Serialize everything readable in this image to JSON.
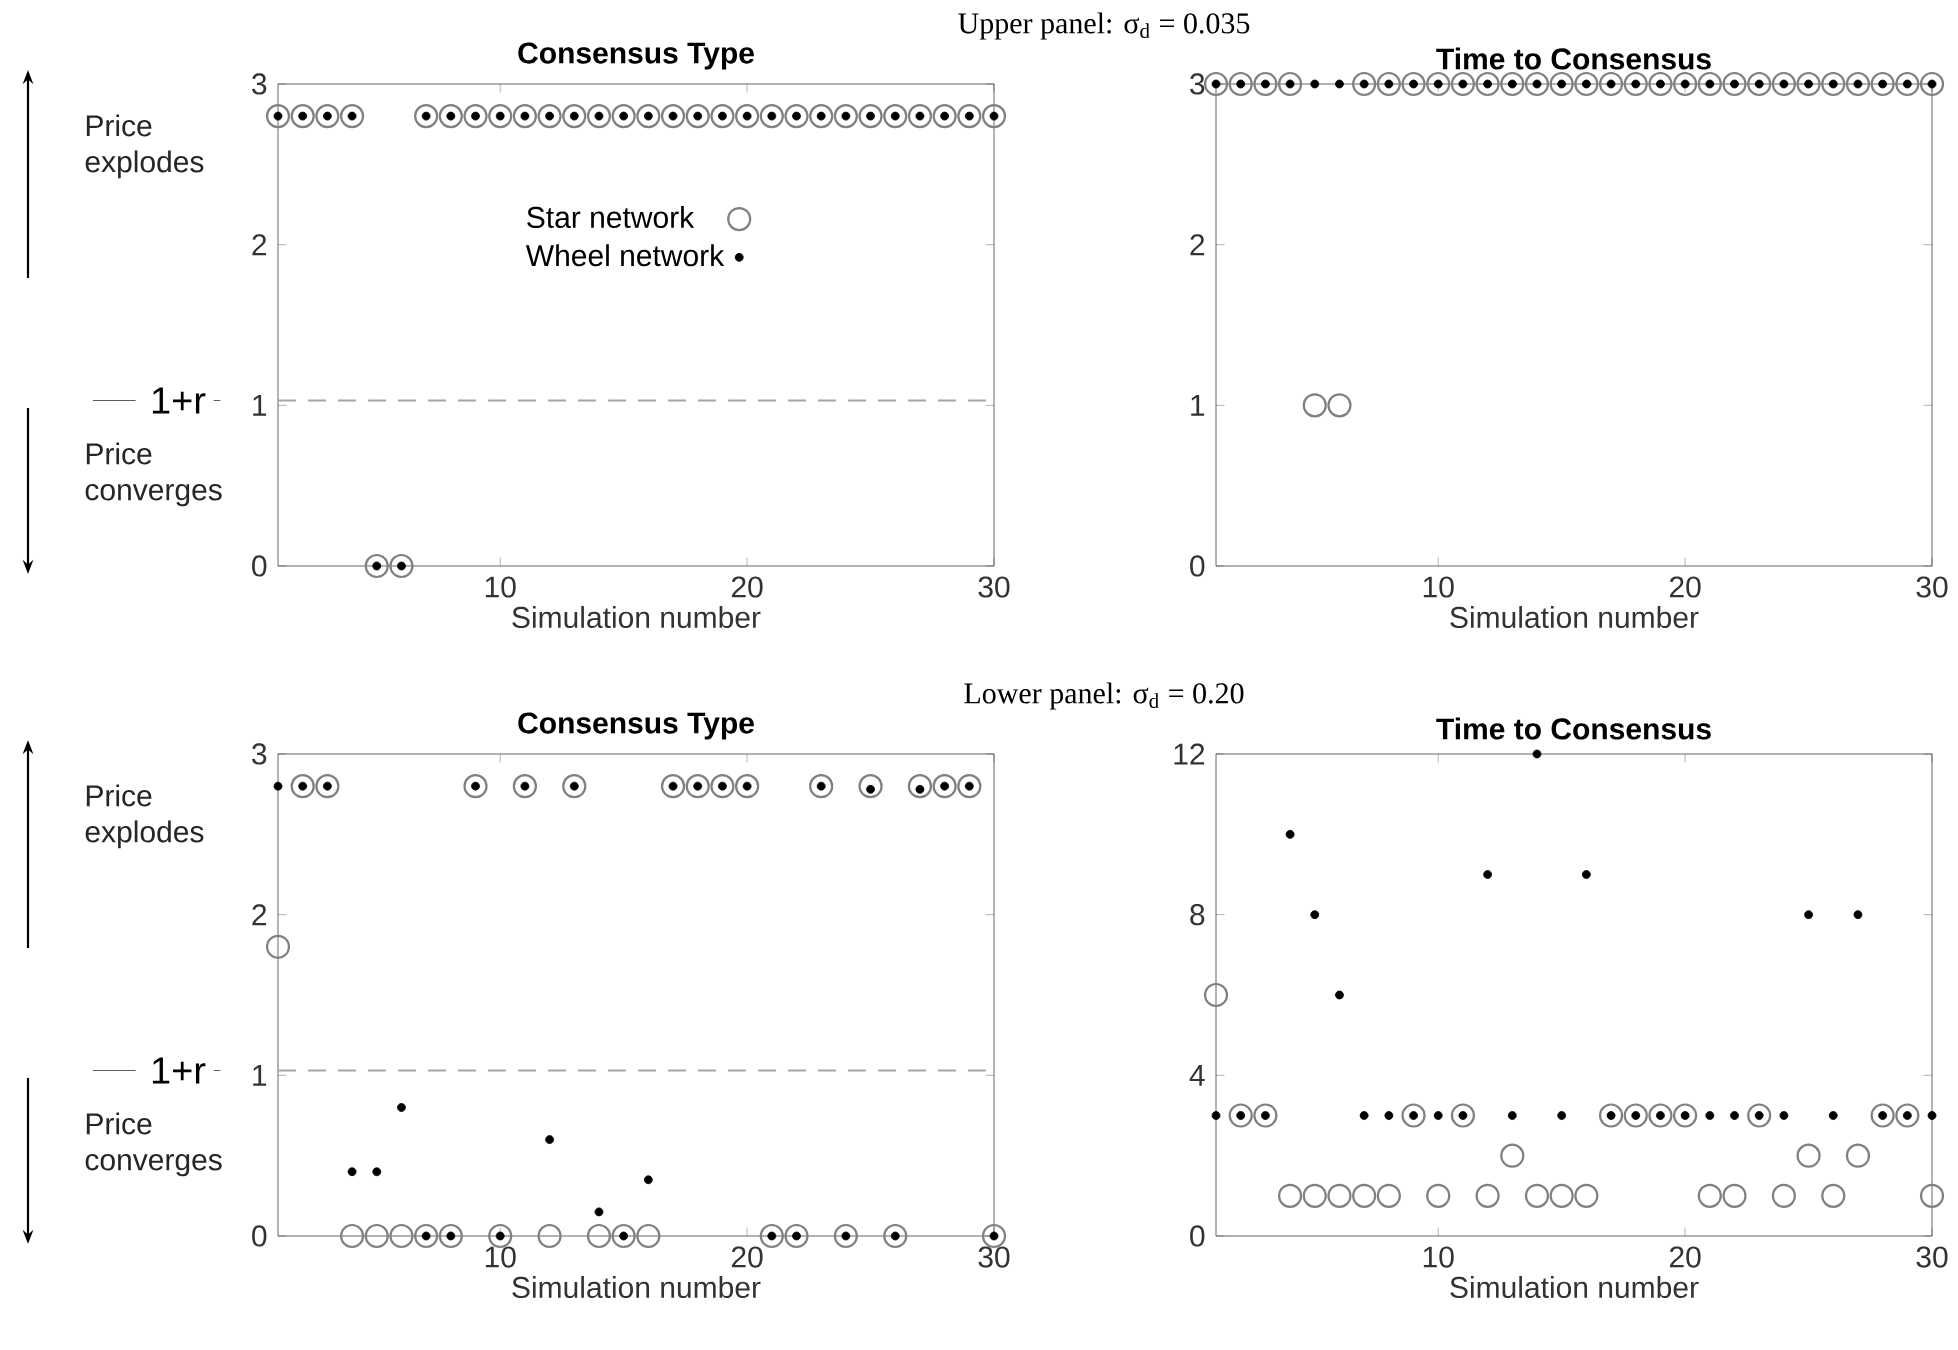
{
  "chart_data": [
    {
      "type": "scatter",
      "title": "Consensus Type",
      "subtitle": "Upper panel: σ$_{d}$ = 0.035",
      "xlabel": "Simulation number",
      "x": [
        1,
        2,
        3,
        4,
        5,
        6,
        7,
        8,
        9,
        10,
        11,
        12,
        13,
        14,
        15,
        16,
        17,
        18,
        19,
        20,
        21,
        22,
        23,
        24,
        25,
        26,
        27,
        28,
        29,
        30
      ],
      "xlim": [
        1,
        30
      ],
      "xticks": [
        10,
        20,
        30
      ],
      "ylim": [
        0,
        3
      ],
      "yticks": [
        0,
        1,
        2,
        3
      ],
      "marker": "circle",
      "legend": "center",
      "grid": false,
      "ref_lines": [
        {
          "axis": "y",
          "value": 1.03,
          "label": "1+r",
          "color": "#a6a6a6",
          "line_style": "dashed"
        }
      ],
      "annotations": [
        "Price explodes",
        "Price converges"
      ],
      "series": [
        {
          "name": "Star network",
          "color": "#808080",
          "values": [
            2.8,
            2.8,
            2.8,
            2.8,
            0,
            0,
            2.8,
            2.8,
            2.8,
            2.8,
            2.8,
            2.8,
            2.8,
            2.8,
            2.8,
            2.8,
            2.8,
            2.8,
            2.8,
            2.8,
            2.8,
            2.8,
            2.8,
            2.8,
            2.8,
            2.8,
            2.8,
            2.8,
            2.8,
            2.8
          ]
        },
        {
          "name": "Wheel network",
          "color": "#000000",
          "values": [
            2.8,
            2.8,
            2.8,
            2.8,
            0,
            0,
            2.8,
            2.8,
            2.8,
            2.8,
            2.8,
            2.8,
            2.8,
            2.8,
            2.8,
            2.8,
            2.8,
            2.8,
            2.8,
            2.8,
            2.8,
            2.8,
            2.8,
            2.8,
            2.8,
            2.8,
            2.8,
            2.8,
            2.8,
            2.8
          ]
        }
      ]
    },
    {
      "type": "scatter",
      "title": "Time to Consensus",
      "xlabel": "Simulation number",
      "x": [
        1,
        2,
        3,
        4,
        5,
        6,
        7,
        8,
        9,
        10,
        11,
        12,
        13,
        14,
        15,
        16,
        17,
        18,
        19,
        20,
        21,
        22,
        23,
        24,
        25,
        26,
        27,
        28,
        29,
        30
      ],
      "xlim": [
        1,
        30
      ],
      "xticks": [
        10,
        20,
        30
      ],
      "ylim": [
        0,
        3
      ],
      "yticks": [
        0,
        1,
        2,
        3
      ],
      "marker": "circle",
      "grid": false,
      "series": [
        {
          "color": "#808080",
          "values": [
            3,
            3,
            3,
            3,
            1,
            1,
            3,
            3,
            3,
            3,
            3,
            3,
            3,
            3,
            3,
            3,
            3,
            3,
            3,
            3,
            3,
            3,
            3,
            3,
            3,
            3,
            3,
            3,
            3,
            3
          ]
        },
        {
          "color": "#000000",
          "values": [
            3,
            3,
            3,
            3,
            3,
            3,
            3,
            3,
            3,
            3,
            3,
            3,
            3,
            3,
            3,
            3,
            3,
            3,
            3,
            3,
            3,
            3,
            3,
            3,
            3,
            3,
            3,
            3,
            3,
            3
          ]
        }
      ]
    },
    {
      "type": "scatter",
      "title": "Consensus Type",
      "subtitle": "Lower panel: σ$_{d}$ = 0.20",
      "xlabel": "Simulation number",
      "x": [
        1,
        2,
        3,
        4,
        5,
        6,
        7,
        8,
        9,
        10,
        11,
        12,
        13,
        14,
        15,
        16,
        17,
        18,
        19,
        20,
        21,
        22,
        23,
        24,
        25,
        26,
        27,
        28,
        29,
        30
      ],
      "xlim": [
        1,
        30
      ],
      "xticks": [
        10,
        20,
        30
      ],
      "ylim": [
        0,
        3
      ],
      "yticks": [
        0,
        1,
        2,
        3
      ],
      "marker": "circle",
      "grid": false,
      "ref_lines": [
        {
          "axis": "y",
          "value": 1.03,
          "label": "1+r",
          "color": "#a6a6a6",
          "line_style": "dashed"
        }
      ],
      "annotations": [
        "Price explodes",
        "Price converges"
      ],
      "series": [
        {
          "color": "#808080",
          "values": [
            1.8,
            2.8,
            2.8,
            0,
            0,
            0,
            0,
            0,
            2.8,
            0,
            2.8,
            0,
            2.8,
            0,
            0,
            0,
            2.8,
            2.8,
            2.8,
            2.8,
            0,
            0,
            2.8,
            0,
            2.8,
            0,
            2.8,
            2.8,
            2.8,
            0
          ]
        },
        {
          "color": "#000000",
          "values": [
            2.8,
            2.8,
            2.8,
            0.4,
            0.4,
            0.8,
            0,
            0,
            2.8,
            0,
            2.8,
            0.6,
            2.8,
            0.15,
            0,
            0.35,
            2.8,
            2.8,
            2.8,
            2.8,
            0,
            0,
            2.8,
            0,
            2.78,
            0,
            2.78,
            2.8,
            2.8,
            0
          ]
        }
      ]
    },
    {
      "type": "scatter",
      "title": "Time to Consensus",
      "xlabel": "Simulation number",
      "x": [
        1,
        2,
        3,
        4,
        5,
        6,
        7,
        8,
        9,
        10,
        11,
        12,
        13,
        14,
        15,
        16,
        17,
        18,
        19,
        20,
        21,
        22,
        23,
        24,
        25,
        26,
        27,
        28,
        29,
        30
      ],
      "xlim": [
        1,
        30
      ],
      "xticks": [
        10,
        20,
        30
      ],
      "ylim": [
        0,
        12
      ],
      "yticks": [
        0,
        4,
        8,
        12
      ],
      "marker": "circle",
      "grid": false,
      "series": [
        {
          "color": "#808080",
          "values": [
            6,
            3,
            3,
            1,
            1,
            1,
            1,
            1,
            3,
            1,
            3,
            1,
            2,
            1,
            1,
            1,
            3,
            3,
            3,
            3,
            1,
            1,
            3,
            1,
            2,
            1,
            2,
            3,
            3,
            1
          ]
        },
        {
          "color": "#000000",
          "values": [
            3,
            3,
            3,
            10,
            8,
            6,
            3,
            3,
            3,
            3,
            3,
            9,
            3,
            12,
            3,
            9,
            3,
            3,
            3,
            3,
            3,
            3,
            3,
            3,
            8,
            3,
            8,
            3,
            3,
            3
          ]
        }
      ]
    }
  ]
}
